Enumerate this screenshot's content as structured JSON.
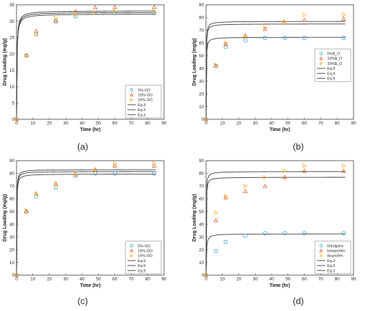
{
  "chart_data": [
    {
      "type": "scatter",
      "caption": "(a)",
      "xlabel": "Time (hr)",
      "ylabel": "Drug Loading (mg/g)",
      "xlim": [
        0,
        90
      ],
      "ylim": [
        0,
        35
      ],
      "xticks": [
        0,
        10,
        20,
        30,
        40,
        50,
        60,
        70,
        80,
        90
      ],
      "yticks": [
        0,
        5,
        10,
        15,
        20,
        25,
        30,
        35
      ],
      "legend_position": "bottom-right",
      "series": [
        {
          "name": "5%-GO",
          "marker": "circle",
          "color": "#3aa0d8",
          "x": [
            0,
            6,
            12,
            24,
            36,
            48,
            60,
            84
          ],
          "y": [
            0,
            19.5,
            26,
            30,
            31.5,
            32.5,
            32.5,
            32.5
          ]
        },
        {
          "name": "10%-GO",
          "marker": "triangle",
          "color": "#e0552b",
          "x": [
            0,
            6,
            12,
            24,
            36,
            48,
            60,
            84
          ],
          "y": [
            0,
            19.5,
            27,
            30,
            33,
            34.2,
            34.3,
            34.3
          ]
        },
        {
          "name": "15%-GO",
          "marker": "triangle-right",
          "color": "#f0b429",
          "x": [
            0,
            6,
            12,
            24,
            36,
            48,
            60,
            84
          ],
          "y": [
            0,
            19.5,
            26,
            31,
            32,
            32.5,
            33,
            33
          ]
        }
      ],
      "fits": [
        {
          "name": "Eq.3",
          "color": "#333333",
          "qe": 32.2,
          "k": 0.15
        },
        {
          "name": "Eq.3",
          "color": "#333333",
          "qe": 33.2,
          "k": 0.15
        },
        {
          "name": "Eq.3",
          "color": "#333333",
          "qe": 32.7,
          "k": 0.15
        }
      ]
    },
    {
      "type": "scatter",
      "caption": "(b)",
      "xlabel": "Time (hr)",
      "ylabel": "Drug Loading (mg/g)",
      "xlim": [
        0,
        90
      ],
      "ylim": [
        0,
        90
      ],
      "xticks": [
        0,
        10,
        20,
        30,
        40,
        50,
        60,
        70,
        80,
        90
      ],
      "yticks": [
        0,
        10,
        20,
        30,
        40,
        50,
        60,
        70,
        80,
        90
      ],
      "legend_position": "center-right",
      "series": [
        {
          "name": "5%$_O",
          "marker": "circle",
          "color": "#3aa0d8",
          "x": [
            0,
            6,
            12,
            24,
            36,
            48,
            60,
            84
          ],
          "y": [
            0,
            42,
            57,
            62,
            64,
            64,
            64,
            64
          ]
        },
        {
          "name": "10%$_O",
          "marker": "triangle",
          "color": "#e0552b",
          "x": [
            0,
            6,
            12,
            24,
            36,
            48,
            60,
            84
          ],
          "y": [
            0,
            42,
            59,
            66,
            71,
            76,
            78,
            79
          ]
        },
        {
          "name": "15%$_O",
          "marker": "triangle-right",
          "color": "#f0b429",
          "x": [
            0,
            6,
            12,
            24,
            36,
            48,
            60,
            84
          ],
          "y": [
            0,
            43,
            60,
            65,
            72,
            77,
            82,
            82
          ]
        }
      ],
      "fits": [
        {
          "name": "Eq.9",
          "color": "#333333",
          "qe": 64.5,
          "k": 0.16
        },
        {
          "name": "Eq.9",
          "color": "#333333",
          "qe": 75,
          "k": 0.15
        },
        {
          "name": "Eq.9",
          "color": "#333333",
          "qe": 77,
          "k": 0.15
        }
      ]
    },
    {
      "type": "scatter",
      "caption": "(c)",
      "xlabel": "Time (hr)",
      "ylabel": "Drug Loading (mg/g)",
      "xlim": [
        0,
        90
      ],
      "ylim": [
        0,
        90
      ],
      "xticks": [
        0,
        10,
        20,
        30,
        40,
        50,
        60,
        70,
        80,
        90
      ],
      "yticks": [
        0,
        10,
        20,
        30,
        40,
        50,
        60,
        70,
        80,
        90
      ],
      "legend_position": "bottom-right",
      "series": [
        {
          "name": "5%-GO",
          "marker": "circle",
          "color": "#3aa0d8",
          "x": [
            0,
            6,
            12,
            24,
            36,
            48,
            60,
            84
          ],
          "y": [
            0,
            50,
            62,
            69,
            78,
            80,
            80,
            80
          ]
        },
        {
          "name": "10%-GO",
          "marker": "triangle",
          "color": "#e0552b",
          "x": [
            0,
            6,
            12,
            24,
            36,
            48,
            60,
            84
          ],
          "y": [
            0,
            50,
            64,
            72,
            79,
            83,
            86,
            86
          ]
        },
        {
          "name": "15%-GO",
          "marker": "triangle-right",
          "color": "#f0b429",
          "x": [
            0,
            6,
            12,
            24,
            36,
            48,
            60,
            84
          ],
          "y": [
            0,
            51,
            64,
            71,
            79,
            82,
            88,
            88
          ]
        }
      ],
      "fits": [
        {
          "name": "Eq.9",
          "color": "#333333",
          "qe": 79.5,
          "k": 0.13
        },
        {
          "name": "Eq.9",
          "color": "#333333",
          "qe": 81.5,
          "k": 0.14
        },
        {
          "name": "Eq.9",
          "color": "#333333",
          "qe": 83,
          "k": 0.14
        }
      ]
    },
    {
      "type": "scatter",
      "caption": "(d)",
      "xlabel": "Time (hr)",
      "ylabel": "Drug Loading (mg/g)",
      "xlim": [
        0,
        90
      ],
      "ylim": [
        0,
        90
      ],
      "xticks": [
        0,
        10,
        20,
        30,
        40,
        50,
        60,
        70,
        80,
        90
      ],
      "yticks": [
        0,
        10,
        20,
        30,
        40,
        50,
        60,
        70,
        80,
        90
      ],
      "legend_position": "bottom-right",
      "series": [
        {
          "name": "felodipine",
          "marker": "circle",
          "color": "#3aa0d8",
          "x": [
            0,
            6,
            12,
            24,
            36,
            48,
            60,
            84
          ],
          "y": [
            0,
            19,
            26,
            31,
            33,
            33,
            33,
            33
          ]
        },
        {
          "name": "ketoprofen",
          "marker": "triangle",
          "color": "#e0552b",
          "x": [
            0,
            6,
            12,
            24,
            36,
            48,
            60,
            84
          ],
          "y": [
            0,
            43,
            61,
            66,
            70,
            77,
            82,
            82
          ]
        },
        {
          "name": "ibuprofen",
          "marker": "triangle-right",
          "color": "#f0b429",
          "x": [
            0,
            6,
            12,
            24,
            36,
            48,
            60,
            84
          ],
          "y": [
            0,
            49,
            62,
            70,
            77,
            82,
            86,
            86
          ]
        }
      ],
      "fits": [
        {
          "name": "Eq.3",
          "color": "#333333",
          "qe": 32.5,
          "k": 0.15
        },
        {
          "name": "Eq.3",
          "color": "#333333",
          "qe": 77,
          "k": 0.16
        },
        {
          "name": "Eq.3",
          "color": "#333333",
          "qe": 81.5,
          "k": 0.16
        }
      ]
    }
  ]
}
